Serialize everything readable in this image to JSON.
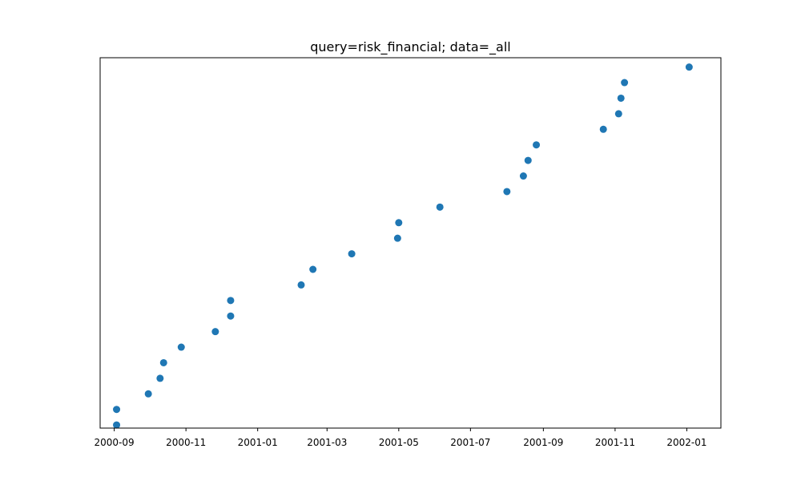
{
  "chart_data": {
    "type": "scatter",
    "title": "query=risk_financial; data=_all",
    "xlabel": "",
    "ylabel": "",
    "y_axis_visible": false,
    "grid": false,
    "legend": "none",
    "x_ticks": [
      "2000-09",
      "2000-11",
      "2001-01",
      "2001-03",
      "2001-05",
      "2001-07",
      "2001-09",
      "2001-11",
      "2002-01"
    ],
    "xlim": [
      "2000-08-20",
      "2002-01-30"
    ],
    "ylim": [
      -0.2,
      23.6
    ],
    "series": [
      {
        "color": "#1f77b4",
        "points": [
          {
            "x": "2000-09-03",
            "y": 0
          },
          {
            "x": "2000-09-03",
            "y": 1
          },
          {
            "x": "2000-09-30",
            "y": 2
          },
          {
            "x": "2000-10-10",
            "y": 3
          },
          {
            "x": "2000-10-13",
            "y": 4
          },
          {
            "x": "2000-10-28",
            "y": 5
          },
          {
            "x": "2000-11-26",
            "y": 6
          },
          {
            "x": "2000-12-09",
            "y": 7
          },
          {
            "x": "2000-12-09",
            "y": 8
          },
          {
            "x": "2001-02-07",
            "y": 9
          },
          {
            "x": "2001-02-17",
            "y": 10
          },
          {
            "x": "2001-03-22",
            "y": 11
          },
          {
            "x": "2001-04-30",
            "y": 12
          },
          {
            "x": "2001-05-01",
            "y": 13
          },
          {
            "x": "2001-06-05",
            "y": 14
          },
          {
            "x": "2001-08-01",
            "y": 15
          },
          {
            "x": "2001-08-15",
            "y": 16
          },
          {
            "x": "2001-08-19",
            "y": 17
          },
          {
            "x": "2001-08-26",
            "y": 18
          },
          {
            "x": "2001-10-22",
            "y": 19
          },
          {
            "x": "2001-11-04",
            "y": 20
          },
          {
            "x": "2001-11-06",
            "y": 21
          },
          {
            "x": "2001-11-09",
            "y": 22
          },
          {
            "x": "2002-01-03",
            "y": 23
          }
        ]
      }
    ]
  }
}
